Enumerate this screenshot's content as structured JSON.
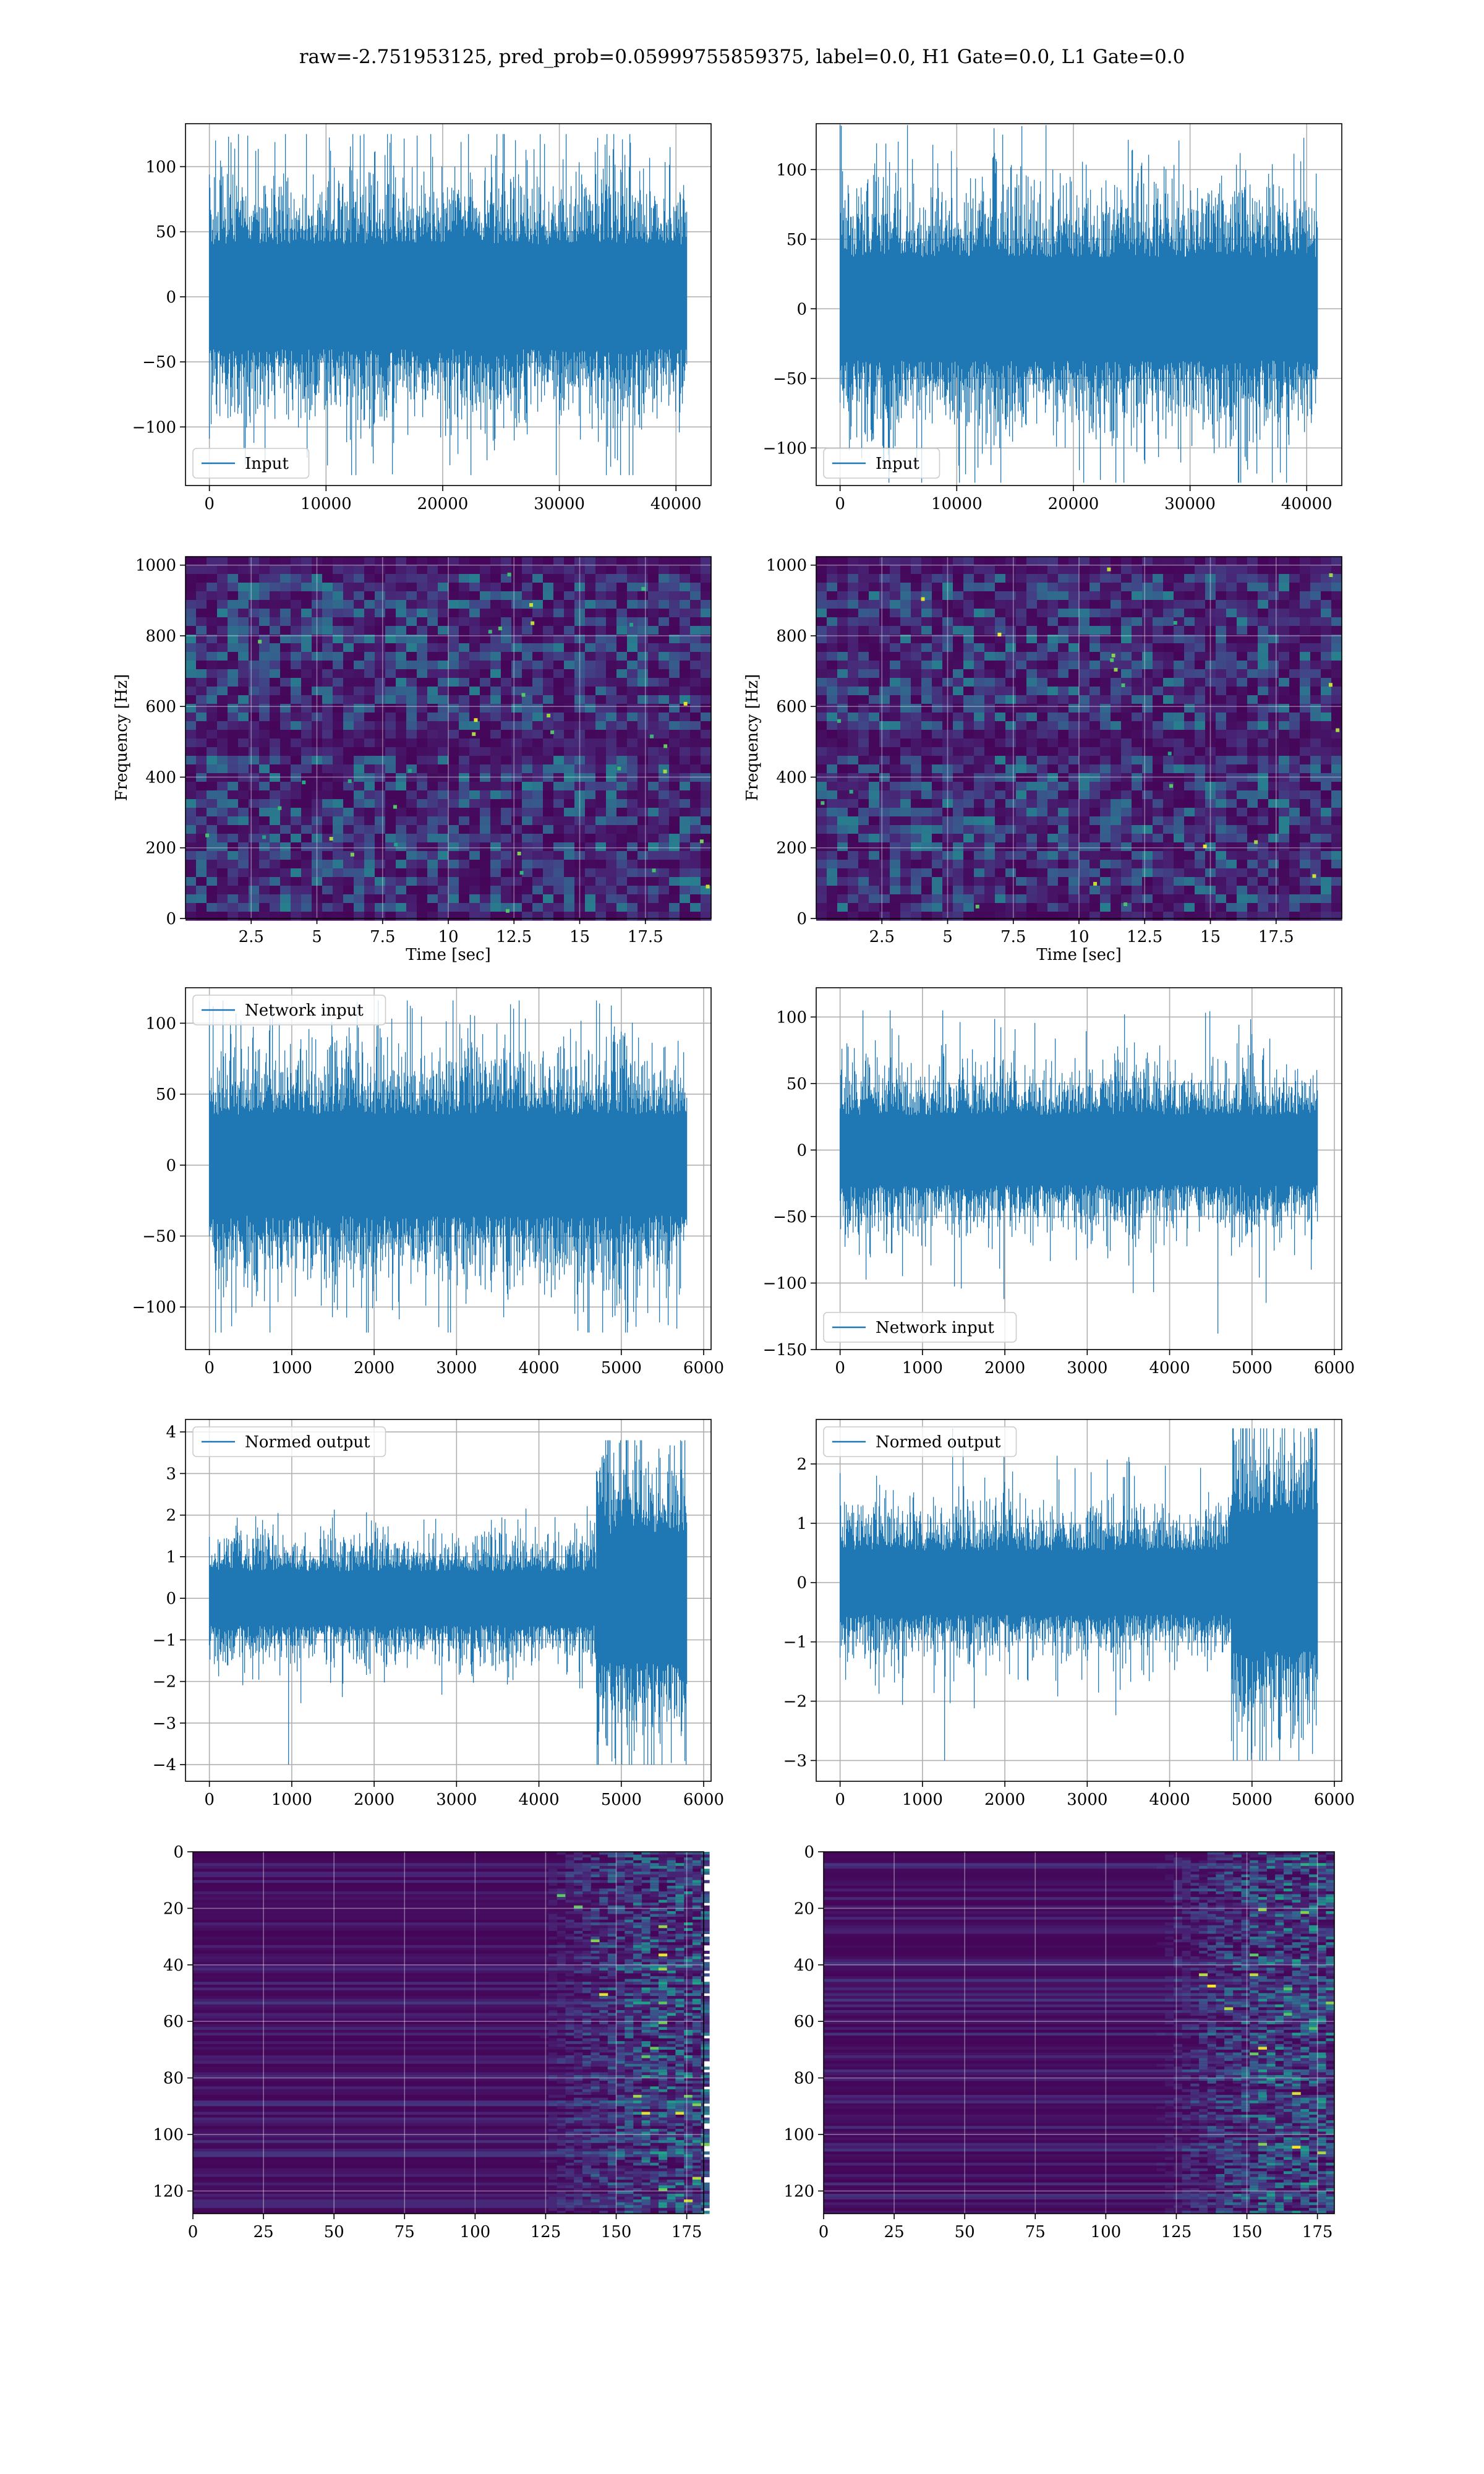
{
  "figure": {
    "suptitle": "raw=-2.751953125, pred_prob=0.05999755859375, label=0.0, H1 Gate=0.0, L1 Gate=0.0",
    "colors": {
      "line": "#1f77b4",
      "grid": "#b0b0b0",
      "colormap": "viridis"
    }
  },
  "chart_data": [
    {
      "id": "h1-input",
      "type": "line",
      "legend": "Input",
      "legend_loc": "lower left",
      "xlim": [
        -2048,
        43008
      ],
      "ylim": [
        -145,
        133
      ],
      "xticks": [
        0,
        10000,
        20000,
        30000,
        40000
      ],
      "yticks": [
        -100,
        -50,
        0,
        50,
        100
      ],
      "series": [
        {
          "n": 40960,
          "x_range": [
            0,
            40960
          ],
          "amp": 26,
          "max": 125,
          "min": -137,
          "seed": 11
        }
      ]
    },
    {
      "id": "l1-input",
      "type": "line",
      "legend": "Input",
      "legend_loc": "lower left",
      "xlim": [
        -2048,
        43008
      ],
      "ylim": [
        -127,
        133
      ],
      "xticks": [
        0,
        10000,
        20000,
        30000,
        40000
      ],
      "yticks": [
        -100,
        -50,
        0,
        50,
        100
      ],
      "series": [
        {
          "n": 40960,
          "x_range": [
            0,
            40960
          ],
          "amp": 24,
          "max": 132,
          "min": -125,
          "seed": 23
        }
      ]
    },
    {
      "id": "h1-spectrogram",
      "type": "heatmap",
      "colormap": "viridis",
      "xlabel": "Time [sec]",
      "ylabel": "Frequency [Hz]",
      "xlim": [
        0,
        20
      ],
      "ylim": [
        0,
        1024
      ],
      "xticks": [
        2.5,
        5.0,
        7.5,
        10.0,
        12.5,
        15.0,
        17.5
      ],
      "yticks": [
        0,
        200,
        400,
        600,
        800,
        1000
      ],
      "seed": 5,
      "bright_points": 34
    },
    {
      "id": "l1-spectrogram",
      "type": "heatmap",
      "colormap": "viridis",
      "xlabel": "Time [sec]",
      "ylabel": "Frequency [Hz]",
      "xlim": [
        0,
        20
      ],
      "ylim": [
        0,
        1024
      ],
      "xticks": [
        2.5,
        5.0,
        7.5,
        10.0,
        12.5,
        15.0,
        17.5
      ],
      "yticks": [
        0,
        200,
        400,
        600,
        800,
        1000
      ],
      "seed": 9,
      "bright_points": 22
    },
    {
      "id": "h1-network-input",
      "type": "line",
      "legend": "Network input",
      "legend_loc": "upper left",
      "xlim": [
        -290,
        6090
      ],
      "ylim": [
        -130,
        125
      ],
      "xticks": [
        0,
        1000,
        2000,
        3000,
        4000,
        5000,
        6000
      ],
      "yticks": [
        -100,
        -50,
        0,
        50,
        100
      ],
      "series": [
        {
          "n": 5800,
          "x_range": [
            0,
            5800
          ],
          "amp": 23,
          "max": 116,
          "min": -118,
          "seed": 31
        }
      ]
    },
    {
      "id": "l1-network-input",
      "type": "line",
      "legend": "Network input",
      "legend_loc": "lower left",
      "xlim": [
        -290,
        6090
      ],
      "ylim": [
        -150,
        122
      ],
      "xticks": [
        0,
        1000,
        2000,
        3000,
        4000,
        5000,
        6000
      ],
      "yticks": [
        -150,
        -100,
        -50,
        0,
        50,
        100
      ],
      "series": [
        {
          "n": 5800,
          "x_range": [
            0,
            5800
          ],
          "amp": 17,
          "max": 105,
          "min": -138,
          "seed": 47
        }
      ]
    },
    {
      "id": "h1-normed-output",
      "type": "line",
      "legend": "Normed output",
      "legend_loc": "upper left",
      "xlim": [
        -290,
        6090
      ],
      "ylim": [
        -4.4,
        4.3
      ],
      "xticks": [
        0,
        1000,
        2000,
        3000,
        4000,
        5000,
        6000
      ],
      "yticks": [
        -4,
        -3,
        -2,
        -1,
        0,
        1,
        2,
        3,
        4
      ],
      "series": [
        {
          "n": 5800,
          "x_range": [
            0,
            5800
          ],
          "amp": 0.42,
          "amp2": 1.0,
          "change_at": 4700,
          "max": 3.8,
          "min": -4.0,
          "seed": 53
        }
      ]
    },
    {
      "id": "l1-normed-output",
      "type": "line",
      "legend": "Normed output",
      "legend_loc": "upper left",
      "xlim": [
        -290,
        6090
      ],
      "ylim": [
        -3.35,
        2.75
      ],
      "xticks": [
        0,
        1000,
        2000,
        3000,
        4000,
        5000,
        6000
      ],
      "yticks": [
        -3,
        -2,
        -1,
        0,
        1,
        2
      ],
      "series": [
        {
          "n": 5800,
          "x_range": [
            0,
            5800
          ],
          "amp": 0.35,
          "amp2": 0.75,
          "change_at": 4750,
          "max": 2.6,
          "min": -3.0,
          "seed": 61
        }
      ]
    },
    {
      "id": "h1-feature-map",
      "type": "heatmap",
      "colormap": "viridis",
      "xlim": [
        0,
        181
      ],
      "ylim": [
        128,
        0
      ],
      "xticks": [
        0,
        25,
        50,
        75,
        100,
        125,
        150,
        175
      ],
      "yticks": [
        0,
        20,
        40,
        60,
        80,
        100,
        120
      ],
      "rows": 128,
      "cols": 181,
      "active_from": 140,
      "seed": 71
    },
    {
      "id": "l1-feature-map",
      "type": "heatmap",
      "colormap": "viridis",
      "xlim": [
        0,
        181
      ],
      "ylim": [
        128,
        0
      ],
      "xticks": [
        0,
        25,
        50,
        75,
        100,
        125,
        150,
        175
      ],
      "yticks": [
        0,
        20,
        40,
        60,
        80,
        100,
        120
      ],
      "rows": 128,
      "cols": 181,
      "active_from": 135,
      "seed": 83
    }
  ]
}
